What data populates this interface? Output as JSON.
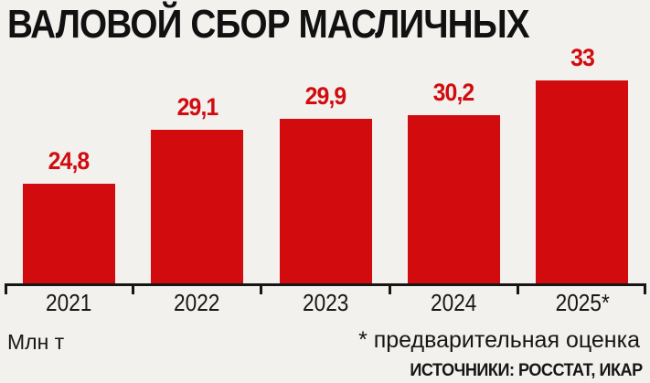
{
  "title": "ВАЛОВОЙ СБОР МАСЛИЧНЫХ",
  "chart_data": {
    "type": "bar",
    "title": "ВАЛОВОЙ СБОР МАСЛИЧНЫХ",
    "categories": [
      "2021",
      "2022",
      "2023",
      "2024",
      "2025*"
    ],
    "values": [
      24.8,
      29.1,
      29.9,
      30.2,
      33
    ],
    "value_labels": [
      "24,8",
      "29,1",
      "29,9",
      "30,2",
      "33"
    ],
    "xlabel": "",
    "ylabel": "Млн т",
    "ylim": [
      16.9,
      35
    ],
    "grid": false,
    "legend": false,
    "bar_color": "#d10b0e",
    "value_label_color": "#d10b0e",
    "axis_color": "#161616",
    "background_color": "#f3f1ee"
  },
  "footer": {
    "unit": "Млн т",
    "footnote": "* предварительная оценка",
    "sources": "ИСТОЧНИКИ: РОССТАТ, ИКАР"
  }
}
